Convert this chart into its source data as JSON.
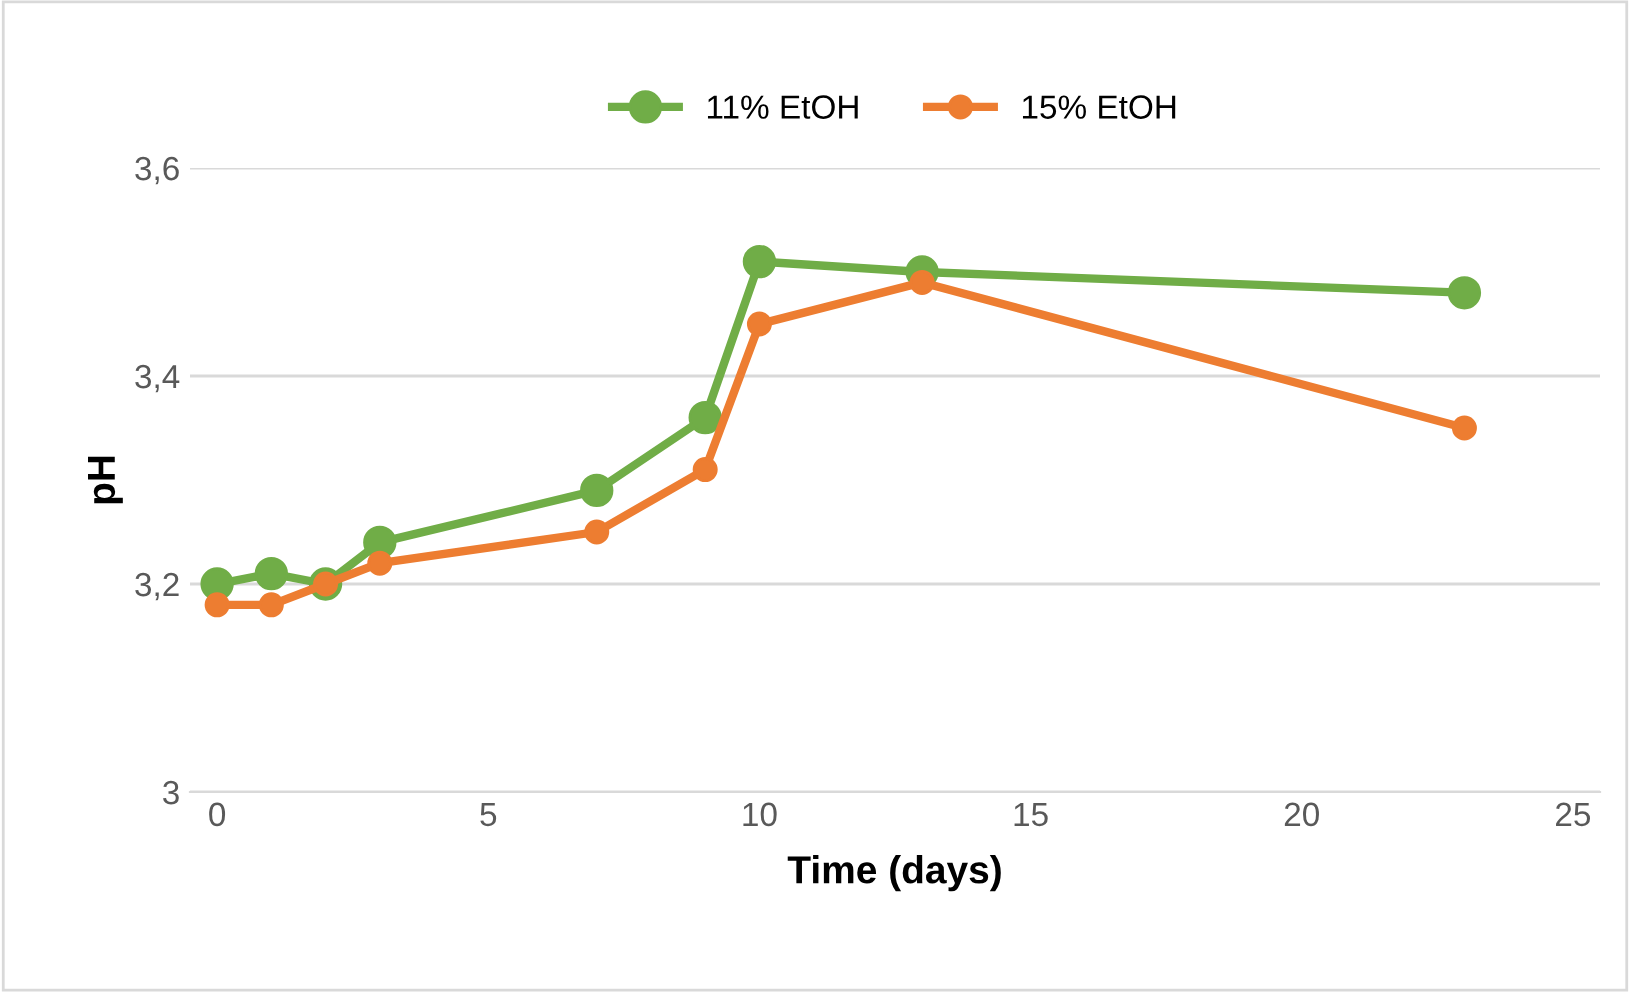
{
  "chart_data": {
    "type": "line",
    "xlabel": "Time (days)",
    "ylabel": "pH",
    "xlim": [
      -0.5,
      25.5
    ],
    "xticks": [
      0,
      5,
      10,
      15,
      20,
      25
    ],
    "ylim": [
      3,
      3.6
    ],
    "yticks": [
      {
        "value": 3,
        "label": "3"
      },
      {
        "value": 3.2,
        "label": "3,2"
      },
      {
        "value": 3.4,
        "label": "3,4"
      },
      {
        "value": 3.6,
        "label": "3,6"
      }
    ],
    "grid": "y",
    "legend": "top",
    "marker": "circle",
    "line_style": "solid",
    "x": [
      0,
      1,
      2,
      3,
      7,
      9,
      10,
      13,
      23
    ],
    "series": [
      {
        "name": "11% EtOH",
        "color": "#70ad47",
        "values": [
          3.2,
          3.21,
          3.2,
          3.24,
          3.29,
          3.36,
          3.51,
          3.5,
          3.48
        ]
      },
      {
        "name": "15% EtOH",
        "color": "#ed7d31",
        "values": [
          3.18,
          3.18,
          3.2,
          3.22,
          3.25,
          3.31,
          3.45,
          3.49,
          3.35
        ]
      }
    ]
  }
}
